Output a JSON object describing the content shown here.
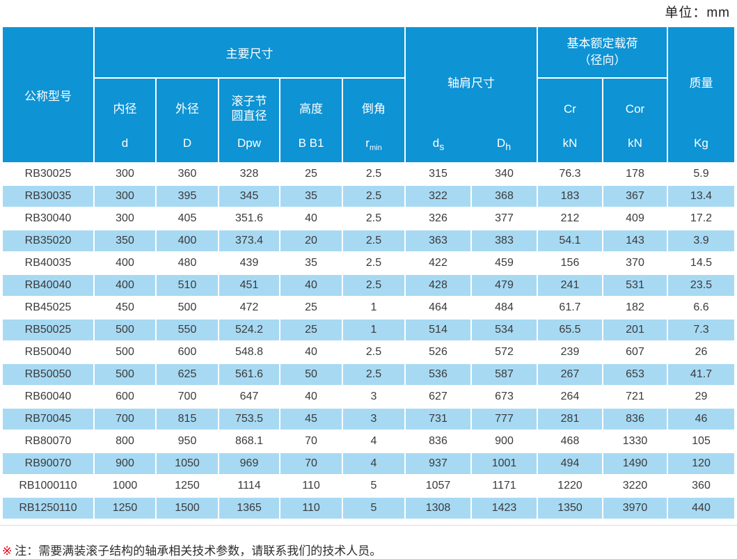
{
  "unit_label": "单位：mm",
  "colors": {
    "header_blue": "#0e93d4",
    "stripe_blue": "#a7d9f3",
    "note_marker_red": "#e60012",
    "data_text": "#3a3a3a"
  },
  "table": {
    "header": {
      "col_model": "公称型号",
      "group_main": "主要尺寸",
      "sub_headers": [
        {
          "name": "内径",
          "symbol": "d"
        },
        {
          "name": "外径",
          "symbol": "D"
        },
        {
          "name": "滚子节\n圆直径",
          "symbol": "Dpw"
        },
        {
          "name": "高度",
          "symbol": "B B1"
        },
        {
          "name": "倒角",
          "symbol": "r",
          "symbol_sub": "min"
        }
      ],
      "group_shoulder": {
        "name": "轴肩尺寸",
        "symbols": [
          {
            "base": "d",
            "sub": "s"
          },
          {
            "base": "D",
            "sub": "h"
          }
        ]
      },
      "group_load": {
        "line1": "基本额定载荷",
        "line2": "（径向）",
        "columns": [
          {
            "symbol": "Cr",
            "unit": "kN"
          },
          {
            "symbol": "Cor",
            "unit": "kN"
          }
        ]
      },
      "col_mass": {
        "name": "质量",
        "unit": "Kg"
      }
    },
    "column_keys": [
      "model",
      "d",
      "D",
      "Dpw",
      "B_B1",
      "r_min",
      "ds",
      "Dh",
      "Cr",
      "Cor",
      "mass"
    ],
    "rows": [
      [
        "RB30025",
        "300",
        "360",
        "328",
        "25",
        "2.5",
        "315",
        "340",
        "76.3",
        "178",
        "5.9"
      ],
      [
        "RB30035",
        "300",
        "395",
        "345",
        "35",
        "2.5",
        "322",
        "368",
        "183",
        "367",
        "13.4"
      ],
      [
        "RB30040",
        "300",
        "405",
        "351.6",
        "40",
        "2.5",
        "326",
        "377",
        "212",
        "409",
        "17.2"
      ],
      [
        "RB35020",
        "350",
        "400",
        "373.4",
        "20",
        "2.5",
        "363",
        "383",
        "54.1",
        "143",
        "3.9"
      ],
      [
        "RB40035",
        "400",
        "480",
        "439",
        "35",
        "2.5",
        "422",
        "459",
        "156",
        "370",
        "14.5"
      ],
      [
        "RB40040",
        "400",
        "510",
        "451",
        "40",
        "2.5",
        "428",
        "479",
        "241",
        "531",
        "23.5"
      ],
      [
        "RB45025",
        "450",
        "500",
        "472",
        "25",
        "1",
        "464",
        "484",
        "61.7",
        "182",
        "6.6"
      ],
      [
        "RB50025",
        "500",
        "550",
        "524.2",
        "25",
        "1",
        "514",
        "534",
        "65.5",
        "201",
        "7.3"
      ],
      [
        "RB50040",
        "500",
        "600",
        "548.8",
        "40",
        "2.5",
        "526",
        "572",
        "239",
        "607",
        "26"
      ],
      [
        "RB50050",
        "500",
        "625",
        "561.6",
        "50",
        "2.5",
        "536",
        "587",
        "267",
        "653",
        "41.7"
      ],
      [
        "RB60040",
        "600",
        "700",
        "647",
        "40",
        "3",
        "627",
        "673",
        "264",
        "721",
        "29"
      ],
      [
        "RB70045",
        "700",
        "815",
        "753.5",
        "45",
        "3",
        "731",
        "777",
        "281",
        "836",
        "46"
      ],
      [
        "RB80070",
        "800",
        "950",
        "868.1",
        "70",
        "4",
        "836",
        "900",
        "468",
        "1330",
        "105"
      ],
      [
        "RB90070",
        "900",
        "1050",
        "969",
        "70",
        "4",
        "937",
        "1001",
        "494",
        "1490",
        "120"
      ],
      [
        "RB1000110",
        "1000",
        "1250",
        "1114",
        "110",
        "5",
        "1057",
        "1171",
        "1220",
        "3220",
        "360"
      ],
      [
        "RB1250110",
        "1250",
        "1500",
        "1365",
        "110",
        "5",
        "1308",
        "1423",
        "1350",
        "3970",
        "440"
      ]
    ]
  },
  "note": {
    "marker": "※",
    "text": "注：需要满装滚子结构的轴承相关技术参数，请联系我们的技术人员。"
  }
}
